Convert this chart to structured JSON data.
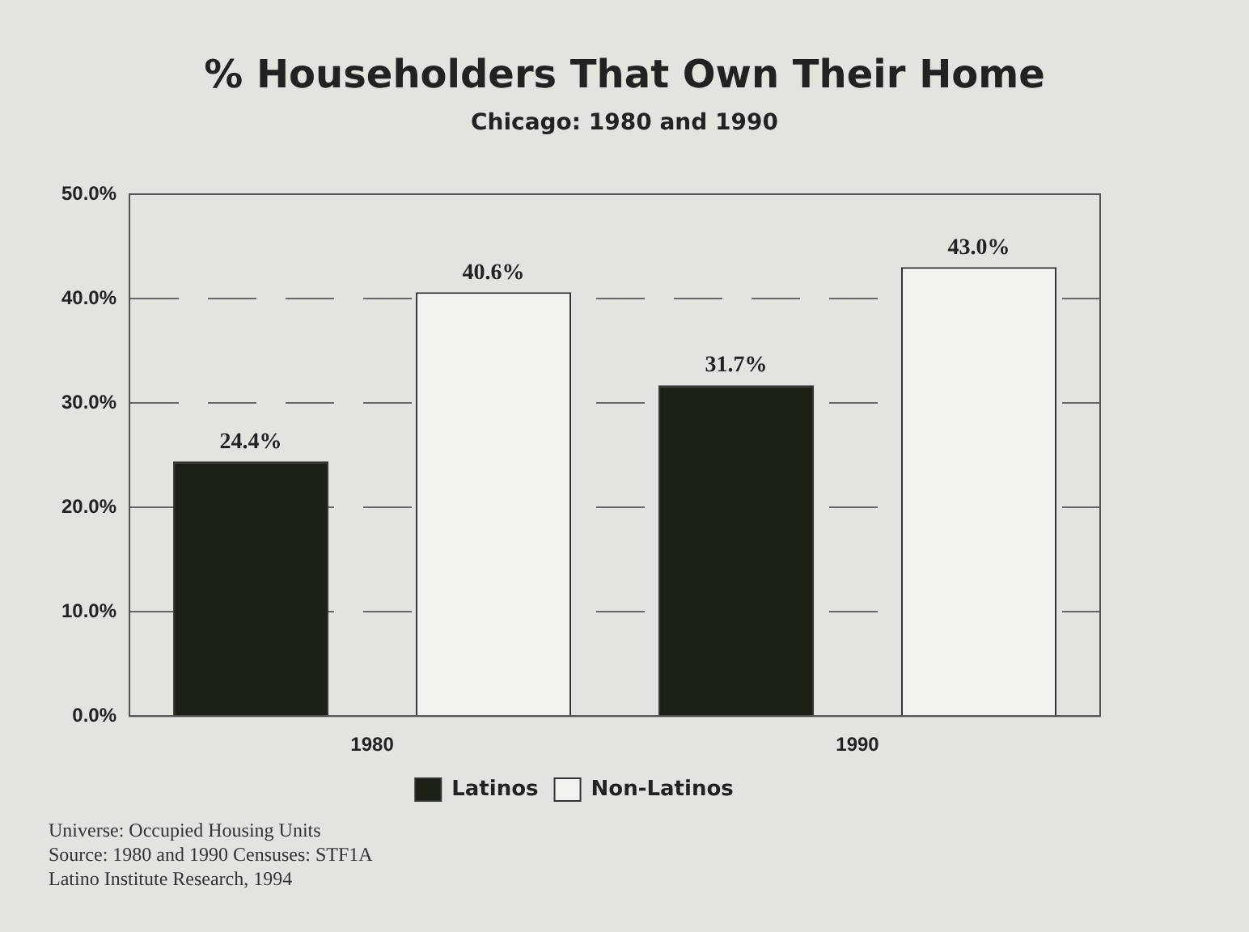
{
  "chart_data": {
    "type": "bar",
    "title": "% Householders That Own Their Home",
    "subtitle": "Chicago: 1980 and 1990",
    "categories": [
      "1980",
      "1990"
    ],
    "series": [
      {
        "name": "Latinos",
        "color": "#1c2118",
        "values": [
          24.4,
          31.7
        ],
        "value_labels": [
          "24.4%",
          "31.7%"
        ]
      },
      {
        "name": "Non-Latinos",
        "color": "#f2f2ee",
        "values": [
          40.6,
          43.0
        ],
        "value_labels": [
          "40.6%",
          "43.0%"
        ]
      }
    ],
    "ylim": [
      0,
      50
    ],
    "yticks": [
      {
        "value": 0,
        "label": "0.0%"
      },
      {
        "value": 10,
        "label": "10.0%"
      },
      {
        "value": 20,
        "label": "20.0%"
      },
      {
        "value": 30,
        "label": "30.0%"
      },
      {
        "value": 40,
        "label": "40.0%"
      },
      {
        "value": 50,
        "label": "50.0%"
      }
    ],
    "grid": "y",
    "legend": "bottom",
    "annotations": [
      "Universe: Occupied Housing Units",
      "Source: 1980 and 1990 Censuses: STF1A",
      "Latino Institute Research, 1994"
    ]
  }
}
